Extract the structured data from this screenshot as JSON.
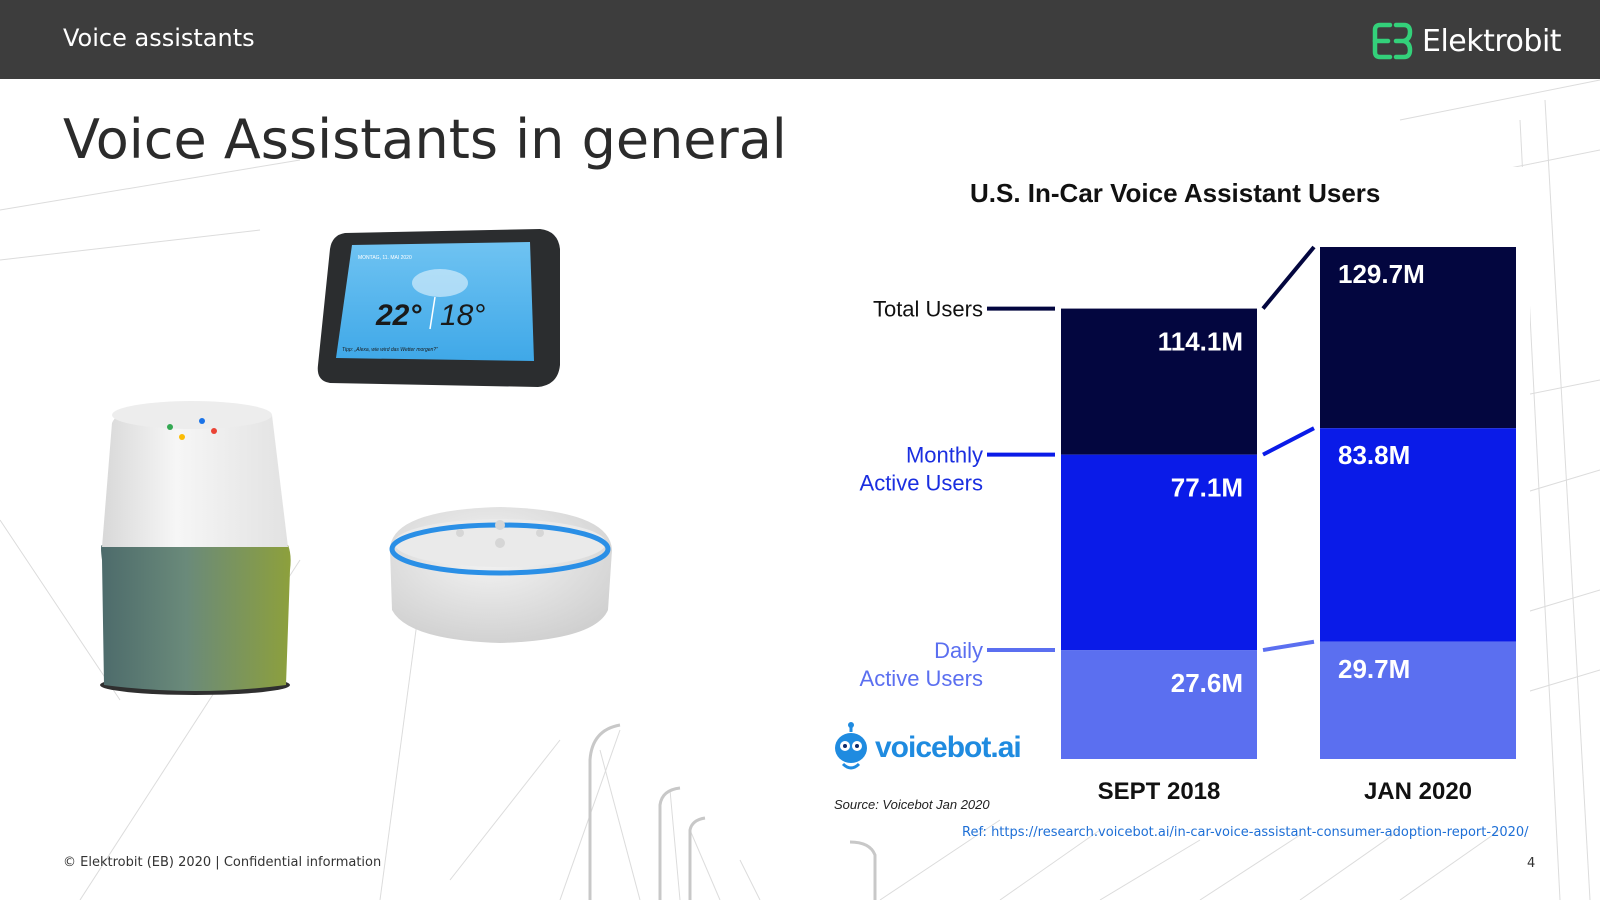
{
  "header": {
    "title": "Voice assistants",
    "logo_text": "Elektrobit",
    "logo_color": "#33d17a"
  },
  "slide": {
    "title": "Voice Assistants in general"
  },
  "devices": {
    "echo_show_screen_top": "MONTAG, 11. MAI 2020",
    "echo_show_temp_high": "22°",
    "echo_show_temp_low": "18°",
    "echo_show_hint": "Tipp: „Alexa, wie wird das Wetter morgen?\""
  },
  "chart_data": {
    "type": "bar",
    "title": "U.S. In-Car Voice Assistant Users",
    "categories": [
      "SEPT 2018",
      "JAN 2020"
    ],
    "series": [
      {
        "name": "Total Users",
        "values": [
          114.1,
          129.7
        ],
        "labels": [
          "114.1M",
          "129.7M"
        ],
        "color": "#03063f"
      },
      {
        "name": "Monthly Active Users",
        "values": [
          77.1,
          83.8
        ],
        "labels": [
          "77.1M",
          "83.8M"
        ],
        "color": "#0a1be8"
      },
      {
        "name": "Daily Active Users",
        "values": [
          27.6,
          29.7
        ],
        "labels": [
          "27.6M",
          "29.7M"
        ],
        "color": "#5b6ff0"
      }
    ],
    "legend_labels": [
      {
        "line1": "Total Users",
        "line2": ""
      },
      {
        "line1": "Monthly",
        "line2": "Active Users"
      },
      {
        "line1": "Daily",
        "line2": "Active Users"
      }
    ],
    "ylim": [
      0,
      129.7
    ],
    "source": "Source: Voicebot Jan 2020",
    "brand": "voicebot.ai"
  },
  "footer": {
    "copyright": "© Elektrobit (EB) 2020 | Confidential information",
    "ref": "Ref: https://research.voicebot.ai/in-car-voice-assistant-consumer-adoption-report-2020/",
    "page_number": "4"
  }
}
